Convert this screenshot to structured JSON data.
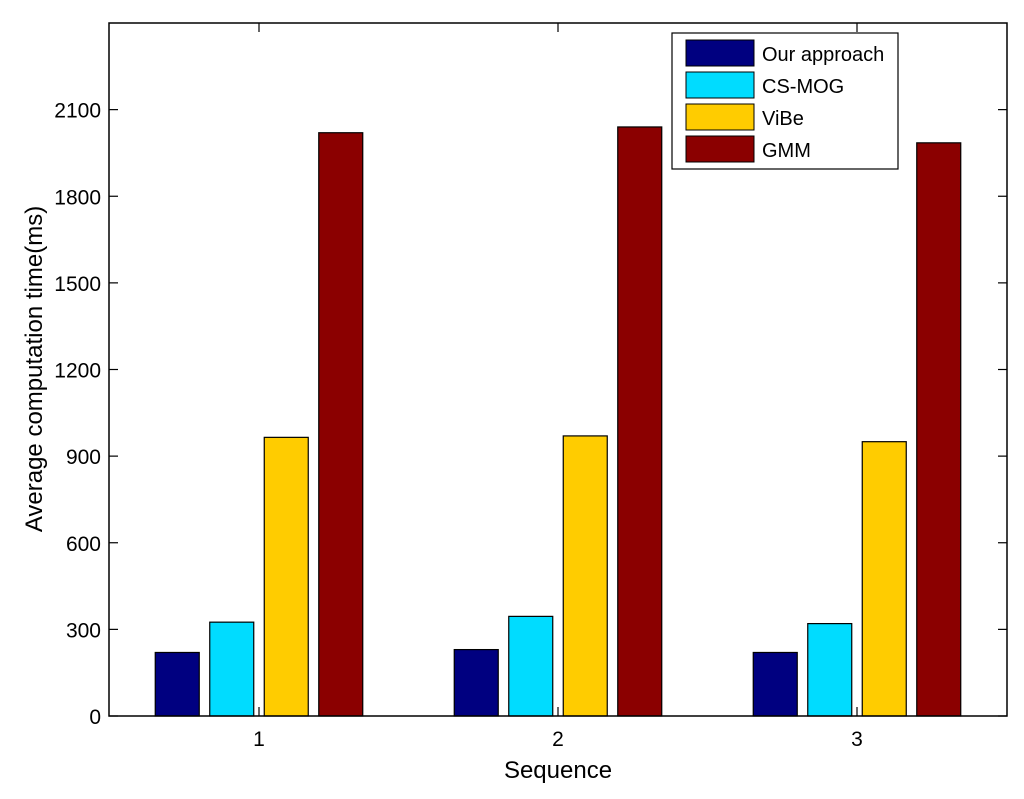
{
  "chart_data": {
    "type": "bar",
    "title": "",
    "xlabel": "Sequence",
    "ylabel": "Average computation time(ms)",
    "categories": [
      "1",
      "2",
      "3"
    ],
    "ylim": [
      0,
      2400
    ],
    "yticks": [
      0,
      300,
      600,
      900,
      1200,
      1500,
      1800,
      2100
    ],
    "grid": false,
    "legend_position": "top-right",
    "series": [
      {
        "name": "Our approach",
        "color": "#000080",
        "values": [
          220,
          230,
          220
        ]
      },
      {
        "name": "CS-MOG",
        "color": "#00dcff",
        "values": [
          325,
          345,
          320
        ]
      },
      {
        "name": "ViBe",
        "color": "#ffcc00",
        "values": [
          965,
          970,
          950
        ]
      },
      {
        "name": "GMM",
        "color": "#8b0000",
        "values": [
          2020,
          2040,
          1985
        ]
      }
    ]
  }
}
